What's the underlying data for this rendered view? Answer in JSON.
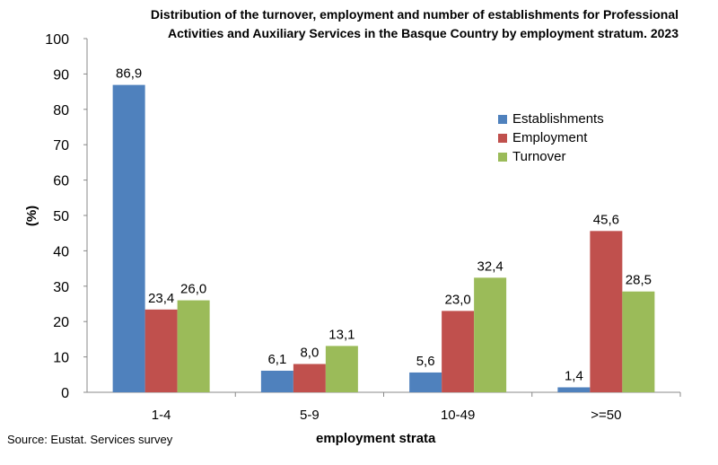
{
  "chart_data": {
    "type": "bar",
    "title": "Distribution of the turnover, employment and number of establishments for Professional Activities and Auxiliary Services in the Basque Country by employment stratum. 2023",
    "title_lines": [
      "Distribution of the turnover, employment and number of establishments for Professional",
      "Activities and Auxiliary Services in the Basque Country by employment stratum. 2023"
    ],
    "xlabel": "employment strata",
    "ylabel": "(%)",
    "ylim": [
      0,
      100
    ],
    "yticks": [
      0,
      10,
      20,
      30,
      40,
      50,
      60,
      70,
      80,
      90,
      100
    ],
    "categories": [
      "1-4",
      "5-9",
      "10-49",
      ">=50"
    ],
    "series": [
      {
        "name": "Establishments",
        "color": "#4f81bd",
        "values": [
          86.9,
          6.1,
          5.6,
          1.4
        ],
        "labels": [
          "86,9",
          "6,1",
          "5,6",
          "1,4"
        ]
      },
      {
        "name": "Employment",
        "color": "#c0504d",
        "values": [
          23.4,
          8.0,
          23.0,
          45.6
        ],
        "labels": [
          "23,4",
          "8,0",
          "23,0",
          "45,6"
        ]
      },
      {
        "name": "Turnover",
        "color": "#9bbb59",
        "values": [
          26.0,
          13.1,
          32.4,
          28.5
        ],
        "labels": [
          "26,0",
          "13,1",
          "32,4",
          "28,5"
        ]
      }
    ],
    "legend_position": "top-right",
    "grid": false
  },
  "source": "Source: Eustat. Services survey"
}
